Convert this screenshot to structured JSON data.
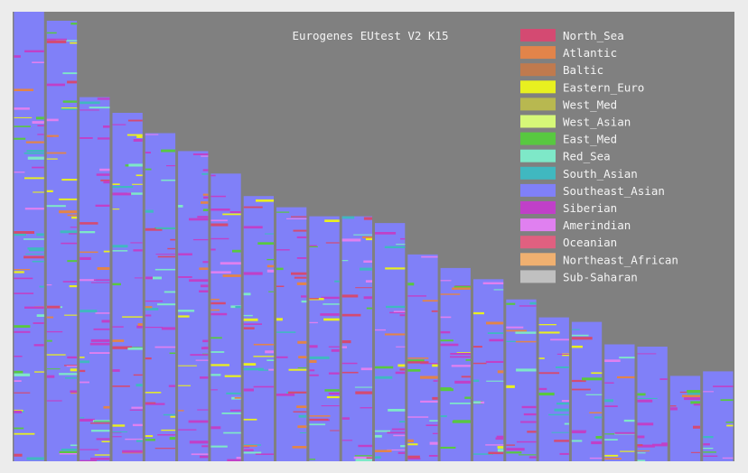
{
  "chart_data": {
    "type": "bar",
    "title": "Eurogenes EUtest V2 K15",
    "description_note": "",
    "legend": [
      {
        "name": "North_Sea",
        "color": "#d44a72"
      },
      {
        "name": "Atlantic",
        "color": "#e2844a"
      },
      {
        "name": "Baltic",
        "color": "#c07a4e"
      },
      {
        "name": "Eastern_Euro",
        "color": "#e8f020"
      },
      {
        "name": "West_Med",
        "color": "#b8b850"
      },
      {
        "name": "West_Asian",
        "color": "#d6f878"
      },
      {
        "name": "East_Med",
        "color": "#58c840"
      },
      {
        "name": "Red_Sea",
        "color": "#7ee8c8"
      },
      {
        "name": "South_Asian",
        "color": "#40b8c0"
      },
      {
        "name": "Southeast_Asian",
        "color": "#8080f8"
      },
      {
        "name": "Siberian",
        "color": "#c040c8"
      },
      {
        "name": "Amerindian",
        "color": "#e080f0"
      },
      {
        "name": "Oceanian",
        "color": "#e06080"
      },
      {
        "name": "Northeast_African",
        "color": "#f0b070"
      },
      {
        "name": "Sub-Saharan",
        "color": "#c0c0c0"
      }
    ],
    "legend_placement": "top-right",
    "background": "#808080",
    "bar_heights": [
      1.0,
      0.98,
      0.81,
      0.775,
      0.73,
      0.69,
      0.64,
      0.59,
      0.565,
      0.545,
      0.545,
      0.53,
      0.46,
      0.43,
      0.405,
      0.36,
      0.32,
      0.31,
      0.26,
      0.255,
      0.19,
      0.2
    ]
  }
}
